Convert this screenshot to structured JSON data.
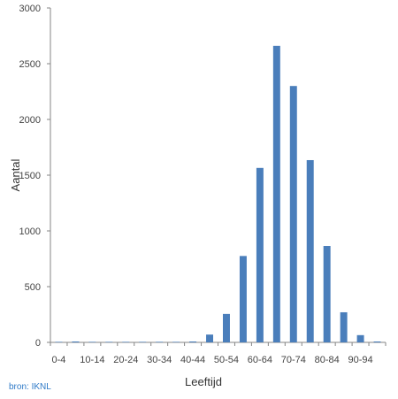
{
  "chart_data": {
    "type": "bar",
    "title": "",
    "xlabel": "Leeftijd",
    "ylabel": "Aantal",
    "categories": [
      "0-4",
      "5-9",
      "10-14",
      "15-19",
      "20-24",
      "25-29",
      "30-34",
      "35-39",
      "40-44",
      "45-49",
      "50-54",
      "55-59",
      "60-64",
      "65-69",
      "70-74",
      "75-79",
      "80-84",
      "85-89",
      "90-94",
      "95+"
    ],
    "category_labels": [
      "0-4",
      "",
      "10-14",
      "",
      "20-24",
      "",
      "30-34",
      "",
      "40-44",
      "",
      "50-54",
      "",
      "60-64",
      "",
      "70-74",
      "",
      "80-84",
      "",
      "90-94",
      ""
    ],
    "values": [
      2,
      8,
      2,
      2,
      2,
      2,
      5,
      2,
      8,
      70,
      255,
      775,
      1565,
      2660,
      2300,
      1635,
      865,
      270,
      65,
      8
    ],
    "ylim": [
      0,
      3000
    ],
    "yticks": [
      0,
      500,
      1000,
      1500,
      2000,
      2500,
      3000
    ],
    "grid": false,
    "legend": "none",
    "bar_color": "#4a7ebb"
  },
  "source_note": "bron: IKNL"
}
